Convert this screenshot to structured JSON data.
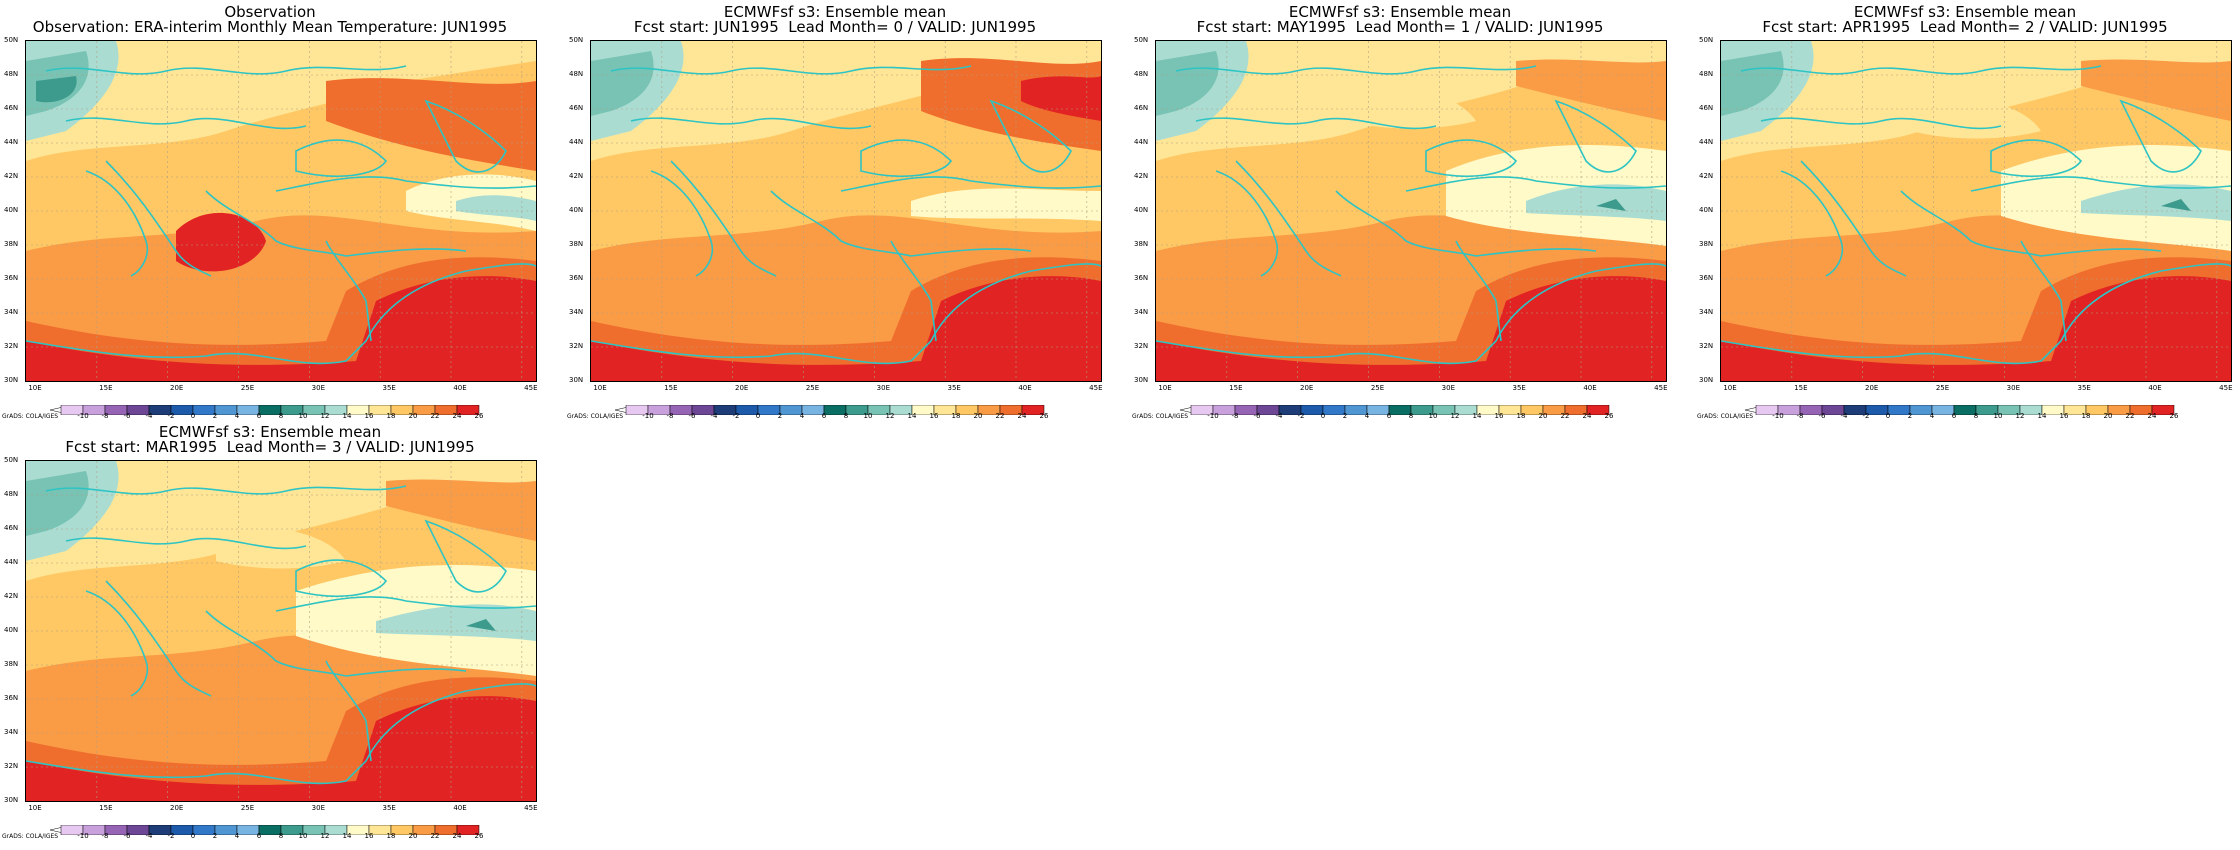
{
  "panels": [
    {
      "title1": "Observation",
      "title2": "Observation: ERA-interim Monthly Mean Temperature: JUN1995",
      "variant": "obs"
    },
    {
      "title1": "ECMWFsf s3: Ensemble mean",
      "title2": "Fcst start: JUN1995  Lead Month= 0 / VALID: JUN1995",
      "variant": "f0"
    },
    {
      "title1": "ECMWFsf s3: Ensemble mean",
      "title2": "Fcst start: MAY1995  Lead Month= 1 / VALID: JUN1995",
      "variant": "f1"
    },
    {
      "title1": "ECMWFsf s3: Ensemble mean",
      "title2": "Fcst start: APR1995  Lead Month= 2 / VALID: JUN1995",
      "variant": "f2"
    },
    {
      "title1": "ECMWFsf s3: Ensemble mean",
      "title2": "Fcst start: MAR1995  Lead Month= 3 / VALID: JUN1995",
      "variant": "f3"
    }
  ],
  "axes": {
    "lat": [
      "50N",
      "48N",
      "46N",
      "44N",
      "42N",
      "40N",
      "38N",
      "36N",
      "34N",
      "32N",
      "30N"
    ],
    "lon": [
      "10E",
      "15E",
      "20E",
      "25E",
      "30E",
      "35E",
      "40E",
      "45E"
    ]
  },
  "colorbar": {
    "labels": [
      "-10",
      "-8",
      "-6",
      "-4",
      "-2",
      "0",
      "2",
      "4",
      "6",
      "8",
      "10",
      "12",
      "14",
      "16",
      "18",
      "20",
      "22",
      "24",
      "26"
    ],
    "colors": [
      "#e6c8f0",
      "#c8a0dc",
      "#9664b4",
      "#6e4696",
      "#1e3c78",
      "#1e5aaa",
      "#3278c8",
      "#5096d2",
      "#78b4e1",
      "#0a6e64",
      "#3c9b8c",
      "#78c3b4",
      "#aadcd2",
      "#fffac8",
      "#ffe696",
      "#ffc864",
      "#fa9b46",
      "#f06e2d",
      "#e12323"
    ],
    "source": "GrADS: COLA/IGES"
  }
}
